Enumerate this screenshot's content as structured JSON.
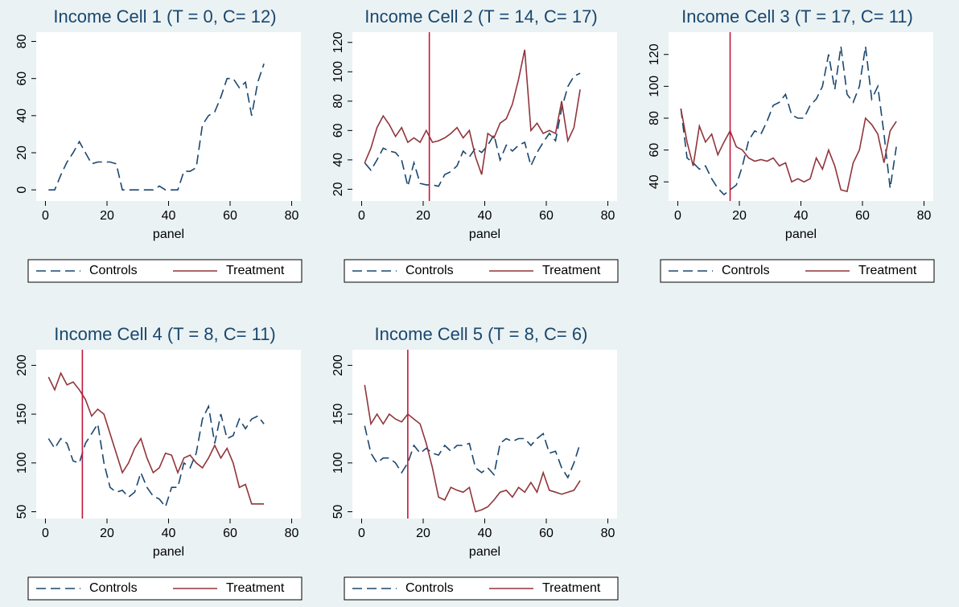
{
  "chart_data": [
    {
      "type": "line",
      "title": "Income Cell 1 (T = 0, C= 12)",
      "x_label": "panel",
      "x": [
        1,
        3,
        5,
        7,
        9,
        11,
        13,
        15,
        17,
        19,
        21,
        23,
        25,
        27,
        29,
        31,
        33,
        35,
        37,
        39,
        41,
        43,
        45,
        47,
        49,
        51,
        53,
        55,
        57,
        59,
        61,
        63,
        65,
        67,
        69,
        71
      ],
      "series": [
        {
          "name": "Controls",
          "color": "#1a476f",
          "dash": true,
          "values": [
            0,
            0,
            8,
            15,
            20,
            26,
            20,
            14,
            15,
            15,
            15,
            14,
            0,
            0,
            0,
            0,
            0,
            0,
            2,
            0,
            0,
            0,
            10,
            10,
            12,
            35,
            40,
            42,
            50,
            60,
            60,
            55,
            58,
            40,
            58,
            68
          ]
        },
        {
          "name": "Treatment",
          "color": "#90353b",
          "dash": false,
          "values": [
            null,
            null,
            null,
            null,
            null,
            null,
            null,
            null,
            null,
            null,
            null,
            null,
            null,
            null,
            null,
            null,
            null,
            null,
            null,
            null,
            null,
            null,
            null,
            null,
            null,
            null,
            null,
            null,
            null,
            null,
            null,
            null,
            null,
            null,
            null,
            null
          ]
        }
      ],
      "xlim": [
        -3,
        83
      ],
      "xticks": [
        0,
        20,
        40,
        60,
        80
      ],
      "ylim": [
        -6,
        85
      ],
      "yticks": [
        0,
        20,
        40,
        60,
        80
      ]
    },
    {
      "type": "line",
      "title": "Income Cell 2 (T = 14, C= 17)",
      "x_label": "panel",
      "x": [
        1,
        3,
        5,
        7,
        9,
        11,
        13,
        15,
        17,
        19,
        21,
        23,
        25,
        27,
        29,
        31,
        33,
        35,
        37,
        39,
        41,
        43,
        45,
        47,
        49,
        51,
        53,
        55,
        57,
        59,
        61,
        63,
        65,
        67,
        69,
        71
      ],
      "series": [
        {
          "name": "Controls",
          "color": "#1a476f",
          "dash": true,
          "values": [
            38,
            33,
            40,
            48,
            46,
            45,
            40,
            22,
            38,
            24,
            23,
            23,
            22,
            30,
            32,
            36,
            46,
            42,
            48,
            45,
            50,
            57,
            40,
            50,
            46,
            50,
            52,
            36,
            45,
            52,
            58,
            53,
            75,
            90,
            97,
            99
          ]
        },
        {
          "name": "Treatment",
          "color": "#90353b",
          "dash": false,
          "values": [
            38,
            48,
            62,
            70,
            64,
            56,
            62,
            52,
            55,
            52,
            60,
            52,
            53,
            55,
            58,
            62,
            55,
            60,
            42,
            30,
            58,
            55,
            65,
            68,
            78,
            95,
            115,
            60,
            65,
            58,
            60,
            58,
            80,
            53,
            62,
            88
          ]
        }
      ],
      "vline": 22,
      "vline_color": "#c0183c",
      "xlim": [
        -3,
        83
      ],
      "xticks": [
        0,
        20,
        40,
        60,
        80
      ],
      "ylim": [
        12,
        127
      ],
      "yticks": [
        20,
        40,
        60,
        80,
        100,
        120
      ]
    },
    {
      "type": "line",
      "title": "Income Cell 3 (T = 17, C= 11)",
      "x_label": "panel",
      "x": [
        1,
        3,
        5,
        7,
        9,
        11,
        13,
        15,
        17,
        19,
        21,
        23,
        25,
        27,
        29,
        31,
        33,
        35,
        37,
        39,
        41,
        43,
        45,
        47,
        49,
        51,
        53,
        55,
        57,
        59,
        61,
        63,
        65,
        67,
        69,
        71
      ],
      "series": [
        {
          "name": "Controls",
          "color": "#1a476f",
          "dash": true,
          "values": [
            86,
            55,
            52,
            48,
            50,
            42,
            36,
            32,
            35,
            38,
            50,
            66,
            72,
            70,
            78,
            88,
            90,
            95,
            82,
            80,
            80,
            88,
            92,
            100,
            120,
            98,
            125,
            95,
            90,
            100,
            125,
            92,
            100,
            70,
            36,
            62
          ]
        },
        {
          "name": "Treatment",
          "color": "#90353b",
          "dash": false,
          "values": [
            86,
            65,
            50,
            75,
            65,
            70,
            57,
            65,
            72,
            62,
            60,
            55,
            53,
            54,
            53,
            55,
            50,
            52,
            40,
            42,
            40,
            42,
            55,
            48,
            60,
            50,
            35,
            34,
            52,
            60,
            80,
            76,
            70,
            52,
            72,
            78
          ]
        }
      ],
      "vline": 17,
      "vline_color": "#c0183c",
      "xlim": [
        -3,
        83
      ],
      "xticks": [
        0,
        20,
        40,
        60,
        80
      ],
      "ylim": [
        28,
        134
      ],
      "yticks": [
        40,
        60,
        80,
        100,
        120
      ]
    },
    {
      "type": "line",
      "title": "Income Cell 4 (T = 8, C= 11)",
      "x_label": "panel",
      "x": [
        1,
        3,
        5,
        7,
        9,
        11,
        13,
        15,
        17,
        19,
        21,
        23,
        25,
        27,
        29,
        31,
        33,
        35,
        37,
        39,
        41,
        43,
        45,
        47,
        49,
        51,
        53,
        55,
        57,
        59,
        61,
        63,
        65,
        67,
        69,
        71
      ],
      "series": [
        {
          "name": "Controls",
          "color": "#1a476f",
          "dash": true,
          "values": [
            125,
            115,
            125,
            120,
            102,
            100,
            120,
            130,
            140,
            100,
            75,
            70,
            72,
            65,
            70,
            90,
            75,
            66,
            63,
            55,
            75,
            75,
            100,
            95,
            110,
            145,
            158,
            120,
            150,
            125,
            128,
            145,
            135,
            145,
            148,
            140
          ]
        },
        {
          "name": "Treatment",
          "color": "#90353b",
          "dash": false,
          "values": [
            188,
            175,
            192,
            180,
            183,
            175,
            165,
            148,
            155,
            150,
            130,
            110,
            90,
            100,
            115,
            125,
            105,
            90,
            95,
            110,
            108,
            90,
            105,
            108,
            100,
            95,
            105,
            118,
            105,
            115,
            100,
            75,
            78,
            58,
            58,
            58
          ]
        }
      ],
      "vline": 12,
      "vline_color": "#c0183c",
      "xlim": [
        -3,
        83
      ],
      "xticks": [
        0,
        20,
        40,
        60,
        80
      ],
      "ylim": [
        43,
        216
      ],
      "yticks": [
        50,
        100,
        150,
        200
      ]
    },
    {
      "type": "line",
      "title": "Income Cell 5 (T = 8, C= 6)",
      "x_label": "panel",
      "x": [
        1,
        3,
        5,
        7,
        9,
        11,
        13,
        15,
        17,
        19,
        21,
        23,
        25,
        27,
        29,
        31,
        33,
        35,
        37,
        39,
        41,
        43,
        45,
        47,
        49,
        51,
        53,
        55,
        57,
        59,
        61,
        63,
        65,
        67,
        69,
        71
      ],
      "series": [
        {
          "name": "Controls",
          "color": "#1a476f",
          "dash": true,
          "values": [
            138,
            110,
            100,
            105,
            105,
            100,
            90,
            100,
            118,
            110,
            115,
            110,
            108,
            118,
            112,
            118,
            118,
            120,
            95,
            90,
            95,
            88,
            120,
            125,
            122,
            125,
            125,
            118,
            125,
            130,
            110,
            112,
            95,
            85,
            100,
            120
          ]
        },
        {
          "name": "Treatment",
          "color": "#90353b",
          "dash": false,
          "values": [
            180,
            140,
            150,
            140,
            150,
            145,
            142,
            150,
            145,
            140,
            120,
            95,
            65,
            62,
            75,
            72,
            70,
            75,
            50,
            52,
            55,
            62,
            70,
            72,
            65,
            75,
            70,
            80,
            70,
            90,
            72,
            70,
            68,
            70,
            72,
            82
          ]
        }
      ],
      "vline": 15,
      "vline_color": "#c0183c",
      "xlim": [
        -3,
        83
      ],
      "xticks": [
        0,
        20,
        40,
        60,
        80
      ],
      "ylim": [
        43,
        216
      ],
      "yticks": [
        50,
        100,
        150,
        200
      ]
    }
  ]
}
